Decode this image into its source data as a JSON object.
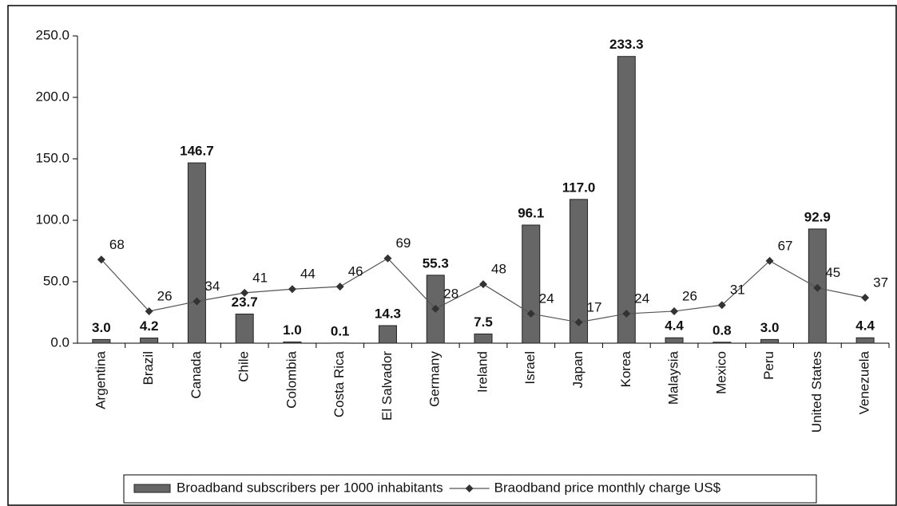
{
  "chart_data": {
    "type": "bar",
    "categories": [
      "Argentina",
      "Brazil",
      "Canada",
      "Chile",
      "Colombia",
      "Costa Rica",
      "El Salvador",
      "Germany",
      "Ireland",
      "Israel",
      "Japan",
      "Korea",
      "Malaysia",
      "Mexico",
      "Peru",
      "United States",
      "Venezuela"
    ],
    "series": [
      {
        "name": "Broadband subscribers per 1000 inhabitants",
        "type": "bar",
        "color": "#666666",
        "values": [
          3.0,
          4.2,
          146.7,
          23.7,
          1.0,
          0.1,
          14.3,
          55.3,
          7.5,
          96.1,
          117.0,
          233.3,
          4.4,
          0.8,
          3.0,
          92.9,
          4.4
        ],
        "value_labels": [
          "3.0",
          "4.2",
          "146.7",
          "23.7",
          "1.0",
          "0.1",
          "14.3",
          "55.3",
          "7.5",
          "96.1",
          "117.0",
          "233.3",
          "4.4",
          "0.8",
          "3.0",
          "92.9",
          "4.4"
        ]
      },
      {
        "name": "Braodband price monthly charge US$",
        "type": "line",
        "color": "#333333",
        "values": [
          68,
          26,
          34,
          41,
          44,
          46,
          69,
          28,
          48,
          24,
          17,
          24,
          26,
          31,
          67,
          45,
          37
        ]
      }
    ],
    "ylim": [
      0,
      250
    ],
    "yticks": [
      {
        "value": 0,
        "label": "0.0"
      },
      {
        "value": 50,
        "label": "50.0"
      },
      {
        "value": 100,
        "label": "100.0"
      },
      {
        "value": 150,
        "label": "150.0"
      },
      {
        "value": 200,
        "label": "200.0"
      },
      {
        "value": 250,
        "label": "250.0"
      }
    ],
    "legend": "bottom"
  }
}
